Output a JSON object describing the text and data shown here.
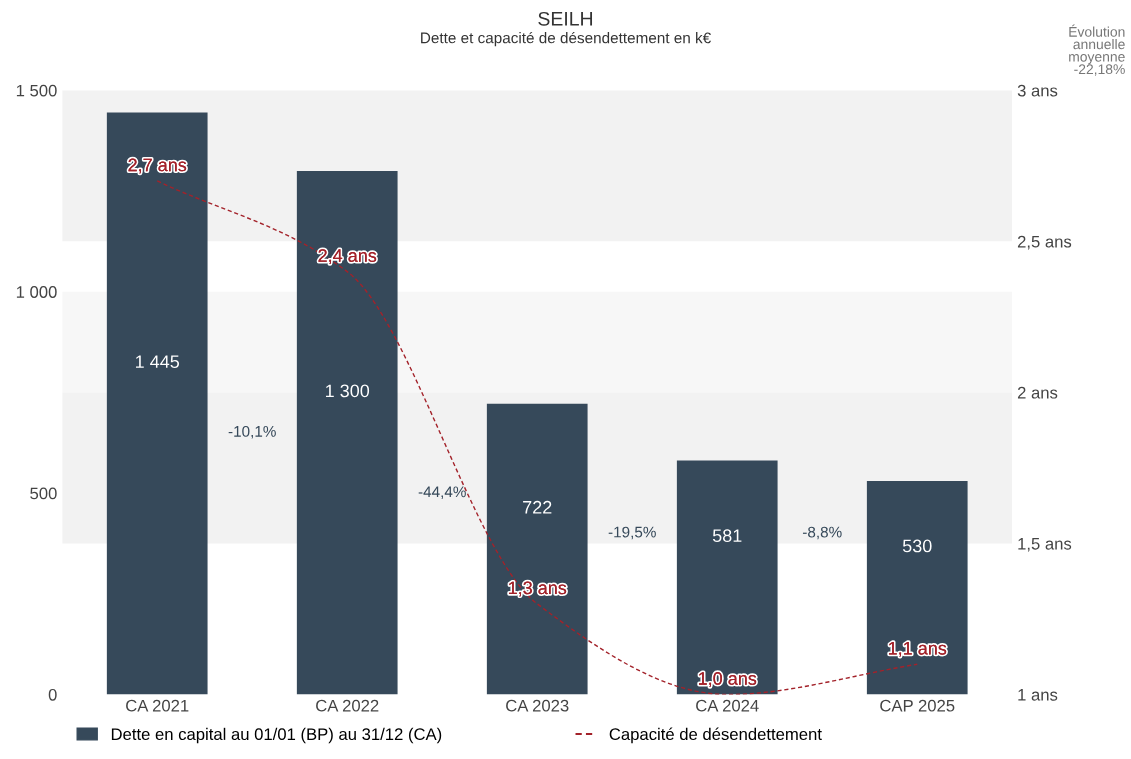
{
  "chart_data": {
    "type": "bar",
    "title": "SEILH",
    "subtitle": "Dette et capacité de désendettement en k€",
    "categories": [
      "CA 2021",
      "CA 2022",
      "CA 2023",
      "CA 2024",
      "CAP 2025"
    ],
    "series": [
      {
        "name": "Dette en capital au 01/01 (BP) au 31/12 (CA)",
        "color": "#36495a",
        "values": [
          1445,
          1300,
          722,
          581,
          530
        ],
        "value_labels": [
          "1 445",
          "1 300",
          "722",
          "581",
          "530"
        ]
      },
      {
        "name": "Capacité de désendettement",
        "type": "line",
        "axis": "y2",
        "color": "#a3222a",
        "line_style": "dashed",
        "values": [
          2.7,
          2.4,
          1.3,
          1.0,
          1.1
        ],
        "value_labels": [
          "2,7 ans",
          "2,4 ans",
          "1,3 ans",
          "1,0 ans",
          "1,1 ans"
        ]
      }
    ],
    "ylim": [
      0,
      1500
    ],
    "yticks": [
      0,
      500,
      {
        "value": 1000,
        "label": "1 000"
      },
      {
        "value": 1500,
        "label": "1 500"
      }
    ],
    "y2lim": [
      1,
      3
    ],
    "y2ticks": [
      {
        "value": 1,
        "label": "1 ans"
      },
      {
        "value": 1.5,
        "label": "1,5 ans"
      },
      {
        "value": 2,
        "label": "2 ans"
      },
      {
        "value": 2.5,
        "label": "2,5 ans"
      },
      {
        "value": 3,
        "label": "3 ans"
      }
    ],
    "bands": [
      {
        "axis": "y2",
        "from": 2.5,
        "to": 3,
        "color": "#f2f2f2"
      },
      {
        "axis": "y",
        "from": 750,
        "to": 1000,
        "color": "#f7f7f7"
      },
      {
        "axis": "y2",
        "from": 1.5,
        "to": 2,
        "color": "#f2f2f2"
      }
    ],
    "annotations": [
      "-10,1%",
      "-44,4%",
      "-19,5%",
      "-8,8%",
      "Évolution\nannuelle\nmoyenne\n-22,18%"
    ],
    "legend": "bottom left",
    "grid": false
  }
}
